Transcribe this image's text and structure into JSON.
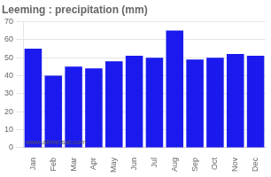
{
  "chart_data": {
    "type": "bar",
    "title": "Leeming : precipitation (mm)",
    "categories": [
      "Jan",
      "Feb",
      "Mar",
      "Apr",
      "May",
      "Jun",
      "Jul",
      "Aug",
      "Sep",
      "Oct",
      "Nov",
      "Dec"
    ],
    "values": [
      55,
      40,
      45,
      44,
      48,
      51,
      50,
      65,
      49,
      50,
      52,
      51
    ],
    "color": "#1a1aee",
    "ylim": [
      0,
      70
    ],
    "yticks": [
      0,
      10,
      20,
      30,
      40,
      50,
      60,
      70
    ],
    "grid": true,
    "annotations": [
      "www.allmetsat.com"
    ]
  }
}
